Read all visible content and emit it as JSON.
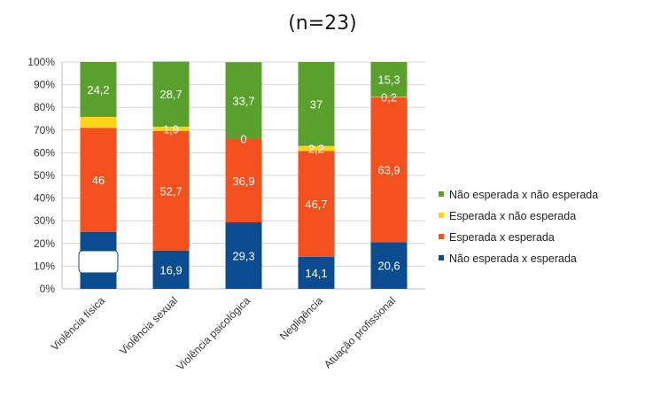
{
  "subtitle": "(n=23)",
  "chart_data": {
    "type": "bar",
    "stacked": true,
    "title": "",
    "xlabel": "",
    "ylabel": "",
    "ylim": [
      0,
      100
    ],
    "yticks": [
      "0%",
      "10%",
      "20%",
      "30%",
      "40%",
      "50%",
      "60%",
      "70%",
      "80%",
      "90%",
      "100%"
    ],
    "grid": true,
    "legend_position": "right",
    "categories": [
      "Violência física",
      "Violência sexual",
      "Violência psicológica",
      "Negligência",
      "Atuação profissional"
    ],
    "series": [
      {
        "name": "Não esperada x esperada",
        "color": "#0b4b8f",
        "values": [
          25,
          16.9,
          29.3,
          14.1,
          20.6
        ],
        "labels": [
          "",
          "16,9",
          "29,3",
          "14,1",
          "20,6"
        ]
      },
      {
        "name": "Esperada x esperada",
        "color": "#f4511e",
        "values": [
          46,
          52.7,
          36.9,
          46.7,
          63.9
        ],
        "labels": [
          "46",
          "52,7",
          "36,9",
          "46,7",
          "63,9"
        ]
      },
      {
        "name": "Esperada x não esperada",
        "color": "#ffd31a",
        "values": [
          4.8,
          1.9,
          0,
          2.2,
          0.2
        ],
        "labels": [
          "",
          "1,9",
          "0",
          "2,2",
          "0,2"
        ]
      },
      {
        "name": "Não esperada x não esperada",
        "color": "#5aa02c",
        "values": [
          24.2,
          28.7,
          33.7,
          37,
          15.3
        ],
        "labels": [
          "24,2",
          "28,7",
          "33,7",
          "37",
          "15,3"
        ]
      }
    ]
  }
}
